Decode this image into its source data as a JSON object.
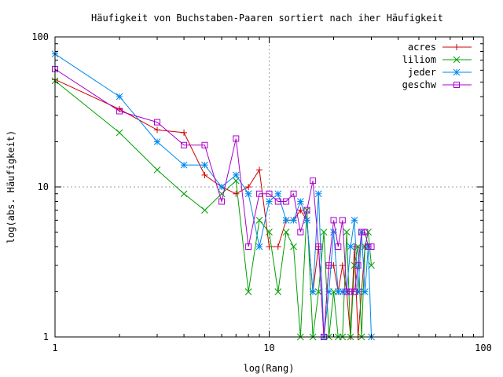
{
  "chart_data": {
    "type": "line",
    "title": "Häufigkeit von Buchstaben-Paaren sortiert nach iher Häufigkeit",
    "xlabel": "log(Rang)",
    "ylabel": "log(abs. Häufigkeit)",
    "xscale": "log",
    "yscale": "log",
    "xlim": [
      1,
      100
    ],
    "ylim": [
      1,
      100
    ],
    "xticks": [
      {
        "value": 1,
        "label": "1"
      },
      {
        "value": 10,
        "label": "10"
      },
      {
        "value": 100,
        "label": "100"
      }
    ],
    "yticks": [
      {
        "value": 1,
        "label": "1"
      },
      {
        "value": 10,
        "label": "10"
      },
      {
        "value": 100,
        "label": "100"
      }
    ],
    "grid": true,
    "legend": "top-right",
    "series": [
      {
        "name": "acres",
        "color": "#cc0000",
        "marker": "plus",
        "x": [
          1,
          2,
          3,
          4,
          5,
          6,
          7,
          8,
          9,
          10,
          11,
          12,
          13,
          14,
          15,
          16,
          17,
          18,
          19,
          20,
          21,
          22,
          23,
          24,
          25,
          26,
          27,
          28
        ],
        "y": [
          52,
          33,
          24,
          23,
          12,
          10,
          9,
          10,
          13,
          4,
          4,
          6,
          6,
          7,
          6,
          2,
          4,
          1,
          3,
          3,
          2,
          3,
          2,
          1,
          4,
          1,
          2,
          4
        ]
      },
      {
        "name": "liliom",
        "color": "#00a000",
        "marker": "cross",
        "x": [
          1,
          2,
          3,
          4,
          5,
          6,
          7,
          8,
          9,
          10,
          11,
          12,
          13,
          14,
          15,
          16,
          17,
          18,
          19,
          20,
          21,
          22,
          23,
          24,
          25,
          26,
          27,
          28,
          29,
          30
        ],
        "y": [
          51,
          23,
          13,
          9,
          7,
          9,
          11,
          2,
          6,
          5,
          2,
          5,
          4,
          1,
          7,
          1,
          2,
          5,
          1,
          2,
          1,
          1,
          5,
          1,
          3,
          4,
          1,
          4,
          5,
          3
        ]
      },
      {
        "name": "jeder",
        "color": "#0088ee",
        "marker": "star",
        "x": [
          1,
          2,
          3,
          4,
          5,
          6,
          7,
          8,
          9,
          10,
          11,
          12,
          13,
          14,
          15,
          16,
          17,
          18,
          19,
          20,
          21,
          22,
          23,
          24,
          25,
          26,
          27,
          28,
          29,
          30
        ],
        "y": [
          77,
          40,
          20,
          14,
          14,
          10,
          12,
          9,
          4,
          8,
          9,
          6,
          6,
          8,
          6,
          2,
          9,
          1,
          2,
          5,
          2,
          2,
          2,
          4,
          6,
          2,
          5,
          2,
          4,
          1
        ]
      },
      {
        "name": "geschw",
        "color": "#aa00cc",
        "marker": "square",
        "x": [
          1,
          2,
          3,
          4,
          5,
          6,
          7,
          8,
          9,
          10,
          11,
          12,
          13,
          14,
          15,
          16,
          17,
          18,
          19,
          20,
          21,
          22,
          23,
          24,
          25,
          26,
          27,
          28,
          29,
          30
        ],
        "y": [
          61,
          32,
          27,
          19,
          19,
          8,
          21,
          4,
          9,
          9,
          8,
          8,
          9,
          5,
          7,
          11,
          4,
          1,
          3,
          6,
          4,
          6,
          2,
          2,
          2,
          3,
          5,
          5,
          4,
          4
        ]
      }
    ]
  }
}
